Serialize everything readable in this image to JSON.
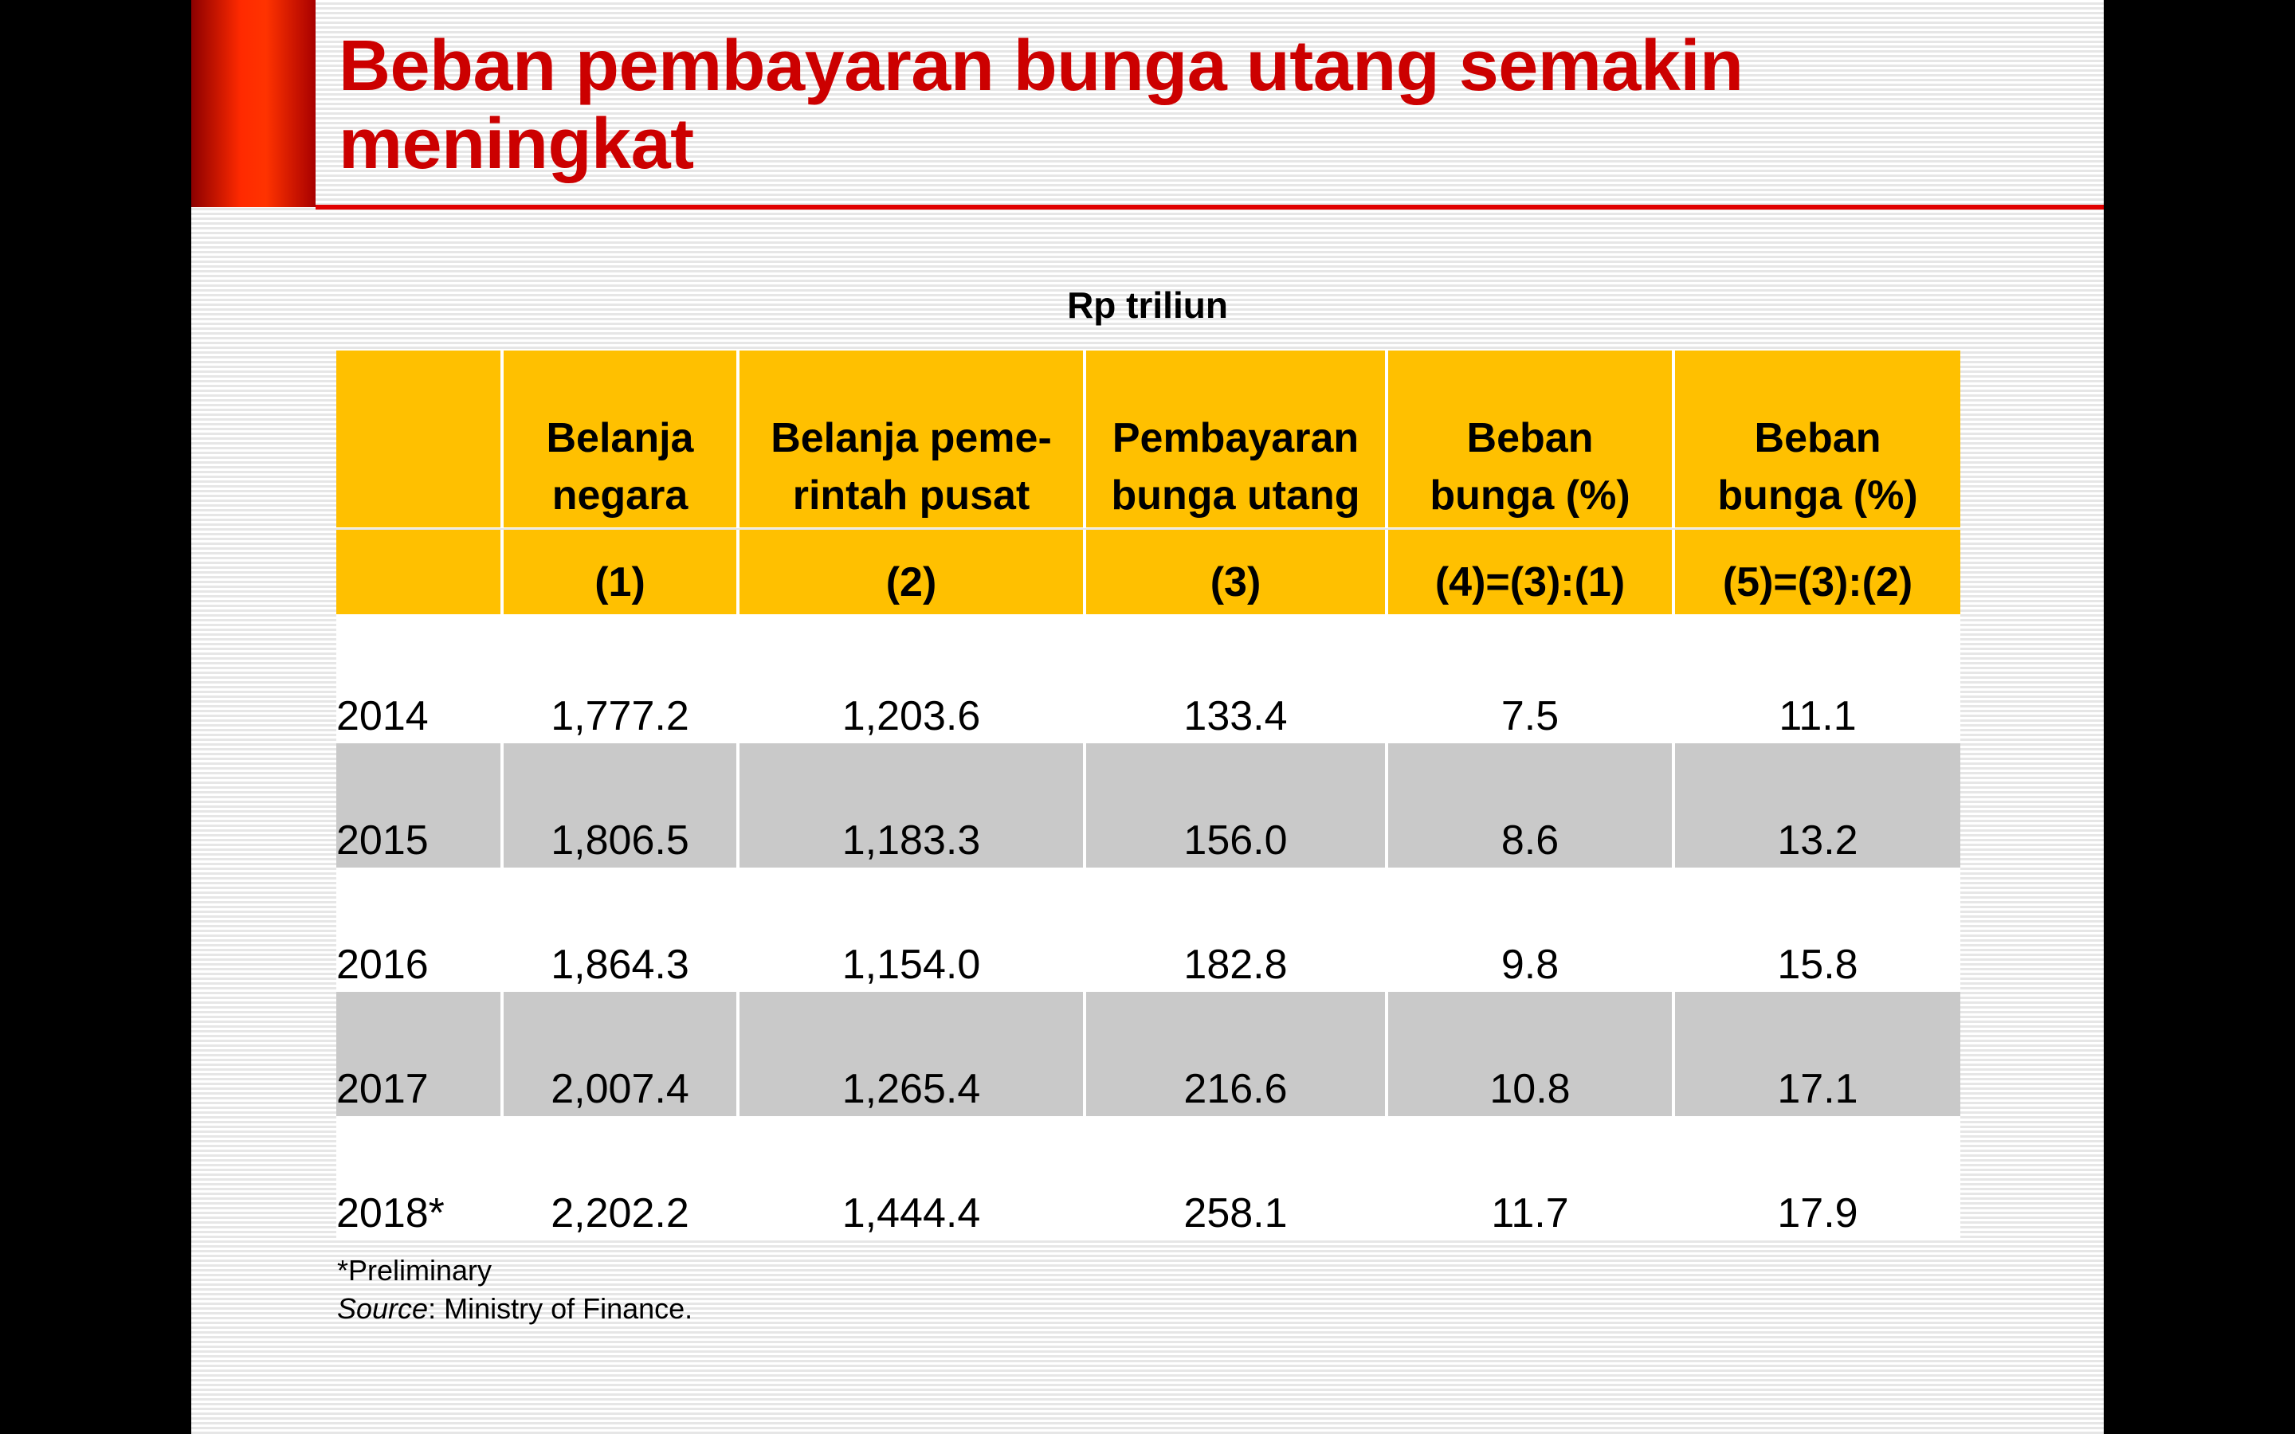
{
  "title": "Beban pembayaran bunga utang semakin meningkat",
  "unit_label": "Rp triliun",
  "columns": [
    {
      "header": "",
      "number": ""
    },
    {
      "header": "Belanja negara",
      "number": "(1)"
    },
    {
      "header": "Belanja peme-rintah pusat",
      "number": "(2)"
    },
    {
      "header": "Pembayaran bunga utang",
      "number": "(3)"
    },
    {
      "header": "Beban bunga (%)",
      "number": "(4)=(3):(1)"
    },
    {
      "header": "Beban bunga (%)",
      "number": "(5)=(3):(2)"
    }
  ],
  "header_lines": [
    [
      "",
      ""
    ],
    [
      "Belanja",
      "negara"
    ],
    [
      "Belanja peme-",
      "rintah pusat"
    ],
    [
      "Pembayaran",
      "bunga utang"
    ],
    [
      "Beban",
      "bunga (%)"
    ],
    [
      "Beban",
      "bunga (%)"
    ]
  ],
  "rows": [
    [
      "2014",
      "1,777.2",
      "1,203.6",
      "133.4",
      "7.5",
      "11.1"
    ],
    [
      "2015",
      "1,806.5",
      "1,183.3",
      "156.0",
      "8.6",
      "13.2"
    ],
    [
      "2016",
      "1,864.3",
      "1,154.0",
      "182.8",
      "9.8",
      "15.8"
    ],
    [
      "2017",
      "2,007.4",
      "1,265.4",
      "216.6",
      "10.8",
      "17.1"
    ],
    [
      "2018*",
      "2,202.2",
      "1,444.4",
      "258.1",
      "11.7",
      "17.9"
    ]
  ],
  "notes": {
    "preliminary": "*Preliminary",
    "source_label": "Source",
    "source_text": ": Ministry of Finance."
  },
  "colors": {
    "title": "#cc0000",
    "header_fill": "#ffc000",
    "alt_row_fill": "#c9c9c9",
    "accent_bar": "#ff2a00"
  }
}
